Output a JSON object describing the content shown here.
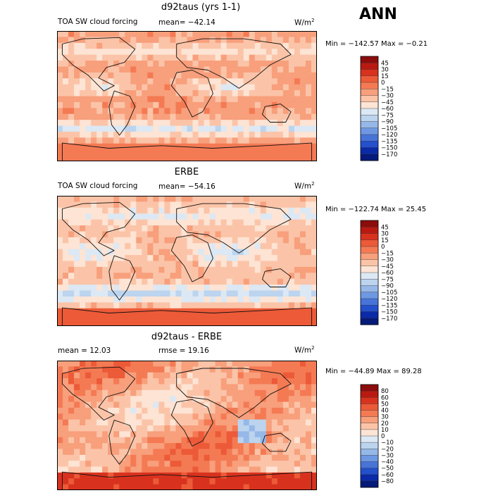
{
  "season": "ANN",
  "chart_data": [
    {
      "type": "heatmap",
      "title": "d92taus (yrs 1-1)",
      "subtitle_left": "TOA SW cloud forcing",
      "stat1": "mean= −42.14",
      "units": "W/m",
      "units_exp": "2",
      "minmax": "Min = −142.57 Max =   −0.21",
      "colorbar_levels": [
        "45",
        "30",
        "15",
        "0",
        "−15",
        "−30",
        "−45",
        "−60",
        "−75",
        "−90",
        "−105",
        "−120",
        "−135",
        "−150",
        "−170"
      ],
      "colorbar_colors": [
        "#8c0d0d",
        "#b81a12",
        "#d8321f",
        "#ec5a38",
        "#f47a54",
        "#f89f7c",
        "#fbc4a8",
        "#fde4d4",
        "#dce8f4",
        "#bcd4ee",
        "#96b8e8",
        "#6f98e2",
        "#4874d8",
        "#2450cc",
        "#0b2aa8",
        "#061a7a"
      ],
      "base_value": -40
    },
    {
      "type": "heatmap",
      "title": "ERBE",
      "subtitle_left": "TOA SW cloud forcing",
      "stat1": "mean= −54.16",
      "units": "W/m",
      "units_exp": "2",
      "minmax": "Min = −122.74 Max =  25.45",
      "colorbar_levels": [
        "45",
        "30",
        "15",
        "0",
        "−15",
        "−30",
        "−45",
        "−60",
        "−75",
        "−90",
        "−105",
        "−120",
        "−135",
        "−150",
        "−170"
      ],
      "colorbar_colors": [
        "#8c0d0d",
        "#b81a12",
        "#d8321f",
        "#ec5a38",
        "#f47a54",
        "#f89f7c",
        "#fbc4a8",
        "#fde4d4",
        "#dce8f4",
        "#bcd4ee",
        "#96b8e8",
        "#6f98e2",
        "#4874d8",
        "#2450cc",
        "#0b2aa8",
        "#061a7a"
      ],
      "base_value": -55
    },
    {
      "type": "heatmap",
      "title": "d92taus - ERBE",
      "stat_mean": "mean =   12.03",
      "stat_rmse": "rmse =   19.16",
      "units": "W/m",
      "units_exp": "2",
      "minmax": "Min = −44.89 Max =  89.28",
      "colorbar_levels": [
        "80",
        "60",
        "50",
        "40",
        "30",
        "20",
        "10",
        "0",
        "−10",
        "−20",
        "−30",
        "−40",
        "−50",
        "−60",
        "−80"
      ],
      "colorbar_colors": [
        "#8c0d0d",
        "#b81a12",
        "#d8321f",
        "#ec5a38",
        "#f47a54",
        "#f89f7c",
        "#fbc4a8",
        "#fde4d4",
        "#dce8f4",
        "#bcd4ee",
        "#96b8e8",
        "#6f98e2",
        "#4874d8",
        "#2450cc",
        "#0b2aa8",
        "#061a7a"
      ],
      "base_value": 12
    }
  ]
}
